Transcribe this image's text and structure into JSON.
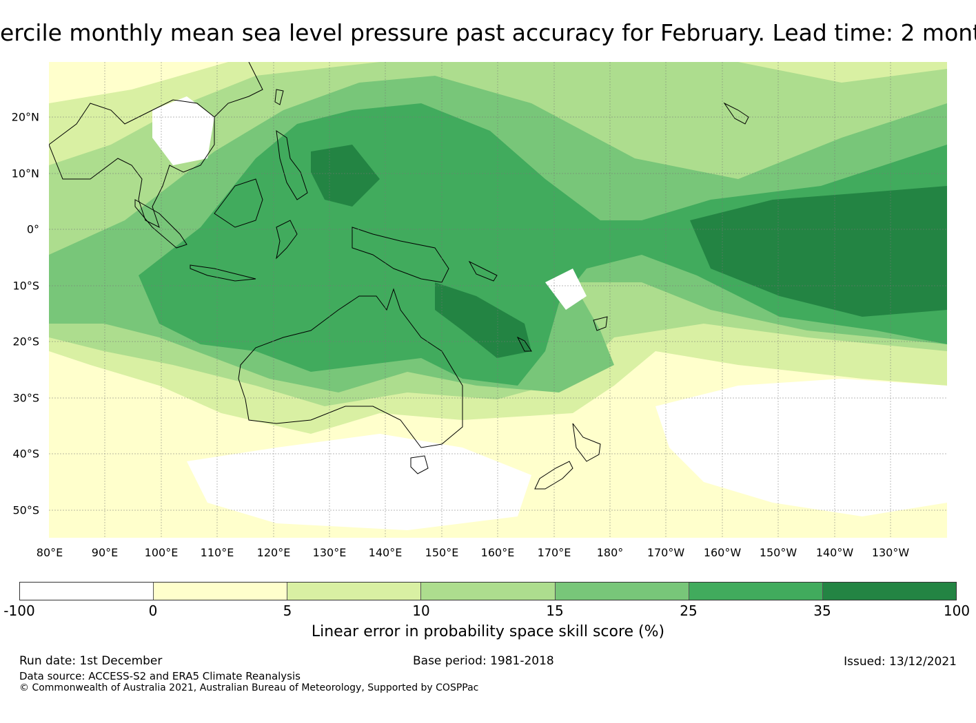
{
  "title": "ercile monthly mean sea level pressure past accuracy for February. Lead time: 2 mont",
  "map": {
    "latitude_labels": [
      "20°N",
      "10°N",
      "0°",
      "10°S",
      "20°S",
      "30°S",
      "40°S",
      "50°S"
    ],
    "longitude_labels": [
      "80°E",
      "90°E",
      "100°E",
      "110°E",
      "120°E",
      "130°E",
      "140°E",
      "150°E",
      "160°E",
      "170°E",
      "180°",
      "170°W",
      "160°W",
      "150°W",
      "140°W",
      "130°W"
    ]
  },
  "legend": {
    "label": "Linear error in probability space skill score (%)",
    "ticks": [
      "-100",
      "0",
      "5",
      "10",
      "15",
      "25",
      "35",
      "100"
    ],
    "colors": [
      "#ffffff",
      "#ffffcc",
      "#d9f0a3",
      "#addd8e",
      "#78c679",
      "#41ab5d",
      "#238443"
    ]
  },
  "footer": {
    "run_date": "Run date: 1st December",
    "base_period": "Base period: 1981-2018",
    "issued": "Issued: 13/12/2021",
    "data_source": "Data source: ACCESS-S2 and ERA5 Climate Reanalysis",
    "copyright": "© Commonwealth of Australia 2021, Australian Bureau of Meteorology, Supported by COSPPac"
  }
}
